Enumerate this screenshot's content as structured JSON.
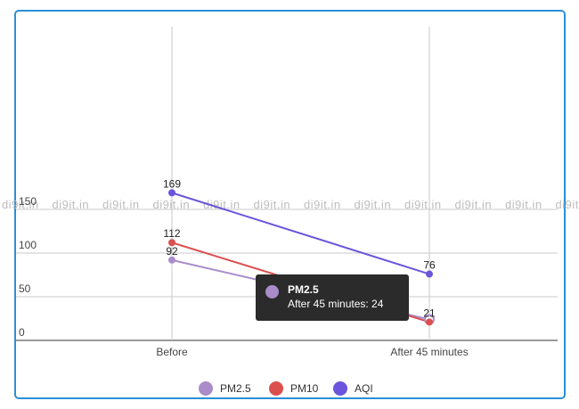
{
  "watermark": "di9it.in",
  "chart_data": {
    "type": "line",
    "categories": [
      "Before",
      "After 45 minutes"
    ],
    "series": [
      {
        "name": "PM2.5",
        "color": "#a98cc9",
        "values": [
          92,
          24
        ],
        "labels": [
          "92",
          ""
        ]
      },
      {
        "name": "PM10",
        "color": "#db4f4f",
        "values": [
          112,
          21
        ],
        "labels": [
          "112",
          "21"
        ]
      },
      {
        "name": "AQI",
        "color": "#6c54dc",
        "values": [
          169,
          76
        ],
        "labels": [
          "169",
          "76"
        ]
      }
    ],
    "y_ticks": [
      "0",
      "50",
      "100",
      "150"
    ],
    "ylim": [
      0,
      175
    ],
    "grid": true,
    "legend": "bottom",
    "tooltip": {
      "series": "PM2.5",
      "title": "PM2.5",
      "text": "After 45 minutes: 24",
      "color": "#a98cc9",
      "category_index": 1
    }
  }
}
